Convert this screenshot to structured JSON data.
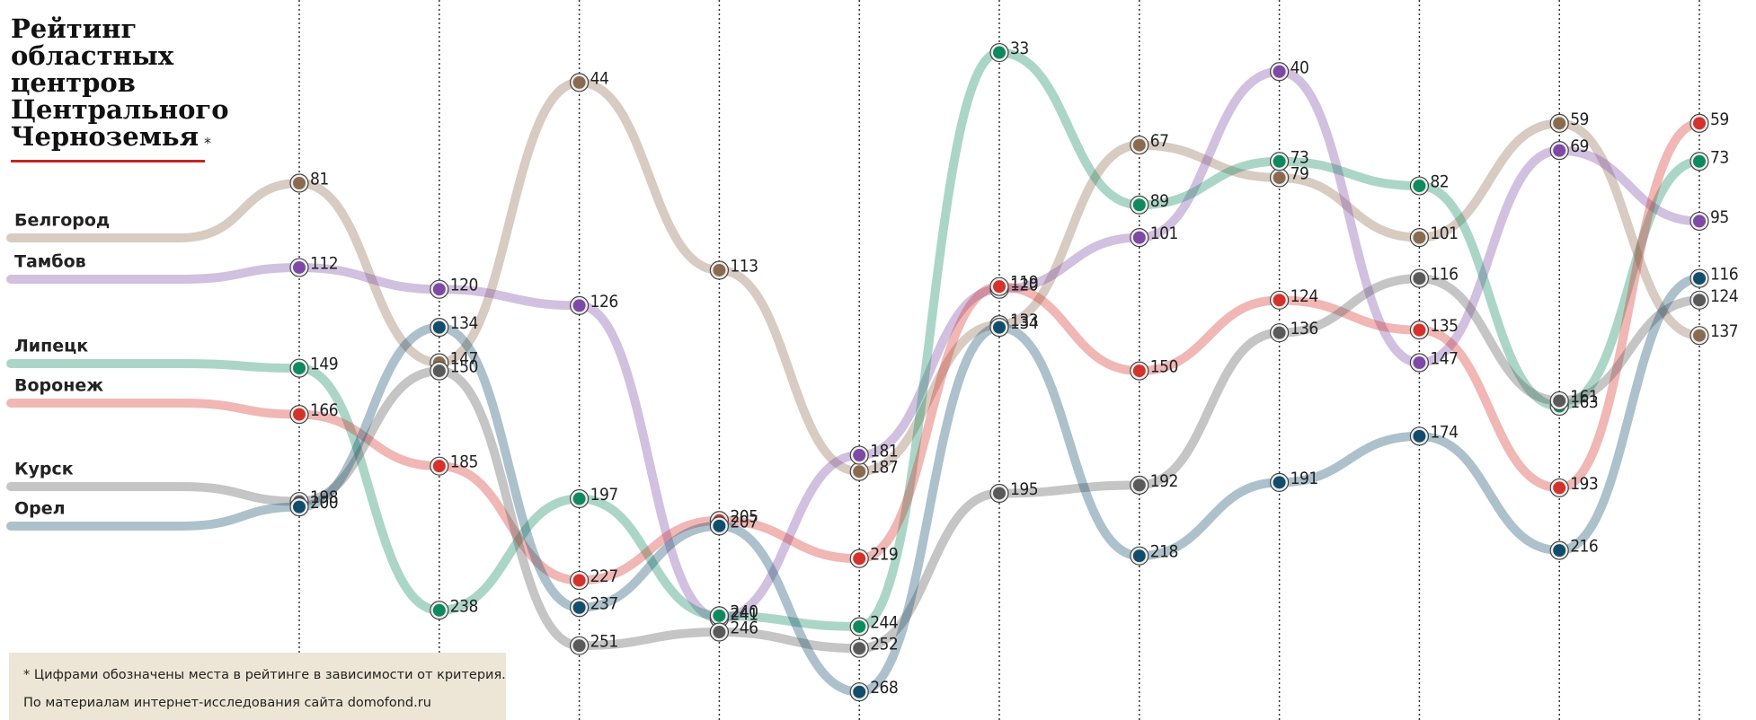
{
  "chart_data": {
    "type": "bump",
    "title": [
      "Рейтинг",
      "областных",
      "центров",
      "Центрального",
      "Черноземья"
    ],
    "title_mark": "*",
    "footnote": [
      "* Цифрами обозначены места в рейтинге в зависимости от критерия.",
      "По материалам интернет-исследования сайта domofond.ru"
    ],
    "ylim": [
      15,
      278
    ],
    "inverted": true,
    "series": [
      {
        "name": "Белгород",
        "color": "#8b6b50",
        "values": [
          81,
          147,
          44,
          113,
          187,
          133,
          67,
          79,
          101,
          59,
          137
        ]
      },
      {
        "name": "Тамбов",
        "color": "#7e4aa5",
        "values": [
          112,
          120,
          126,
          241,
          181,
          120,
          101,
          40,
          147,
          69,
          95
        ]
      },
      {
        "name": "Липецк",
        "color": "#0f8a5f",
        "values": [
          149,
          238,
          197,
          240,
          244,
          33,
          89,
          73,
          82,
          163,
          73
        ]
      },
      {
        "name": "Воронеж",
        "color": "#d4322c",
        "values": [
          166,
          185,
          227,
          205,
          219,
          119,
          150,
          124,
          135,
          193,
          59
        ]
      },
      {
        "name": "Курск",
        "color": "#5a5a5a",
        "values": [
          198,
          150,
          251,
          246,
          252,
          195,
          192,
          136,
          116,
          161,
          124
        ]
      },
      {
        "name": "Орел",
        "color": "#124e6b",
        "values": [
          200,
          134,
          237,
          207,
          268,
          134,
          218,
          191,
          174,
          216,
          116
        ]
      }
    ]
  }
}
